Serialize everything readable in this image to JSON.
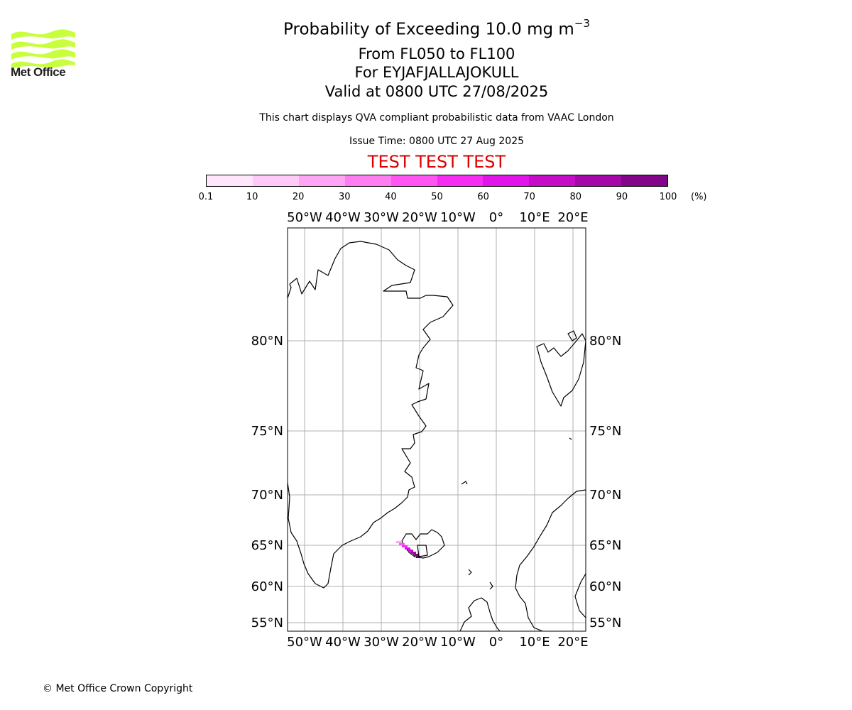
{
  "header": {
    "logo_text": "Met Office",
    "title_prefix": "Probability of Exceeding 10.0 mg m",
    "title_exp": "−3",
    "flight_levels": "From FL050 to FL100",
    "volcano": "For EYJAFJALLAJOKULL",
    "valid_time": "Valid at 0800 UTC 27/08/2025",
    "note": "This chart displays QVA compliant probabilistic data from VAAC London",
    "issue_time": "Issue Time: 0800 UTC 27 Aug 2025",
    "test_banner": "TEST TEST TEST"
  },
  "colorbar": {
    "ticks": [
      "0.1",
      "10",
      "20",
      "30",
      "40",
      "50",
      "60",
      "70",
      "80",
      "90",
      "100"
    ],
    "unit": "(%)",
    "colors": [
      "#ffe6fb",
      "#ffc9f8",
      "#ffa5f5",
      "#ff7df3",
      "#ff55f2",
      "#f52cf2",
      "#e114e9",
      "#c40cc9",
      "#a507a9",
      "#82058a",
      "#5c0363"
    ]
  },
  "map": {
    "lon_labels": [
      "50°W",
      "40°W",
      "30°W",
      "20°W",
      "10°W",
      "0°",
      "10°E",
      "20°E"
    ],
    "lat_labels": [
      "80°N",
      "75°N",
      "70°N",
      "65°N",
      "60°N",
      "55°N"
    ]
  },
  "footer": {
    "copyright": "© Met Office Crown Copyright"
  }
}
